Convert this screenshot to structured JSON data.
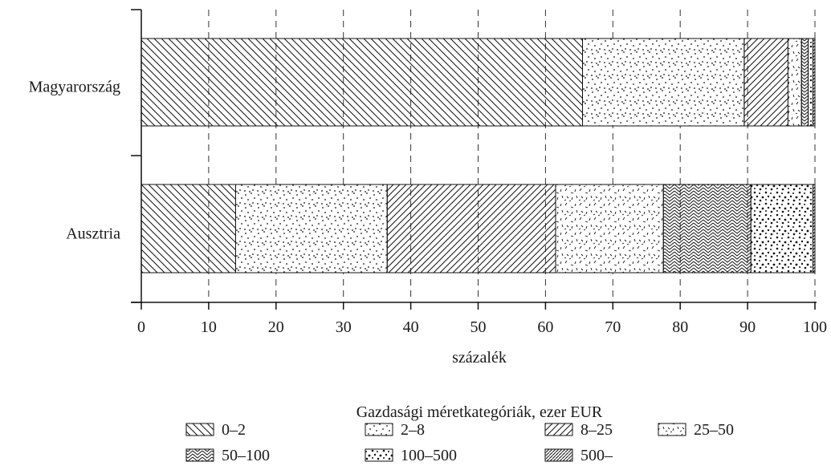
{
  "chart_data": {
    "type": "bar",
    "orientation": "horizontal",
    "stacked": true,
    "categories": [
      "Magyarország",
      "Ausztria"
    ],
    "series": [
      {
        "name": "0–2",
        "values": [
          65.5,
          14.0
        ]
      },
      {
        "name": "2–8",
        "values": [
          24.0,
          22.5
        ]
      },
      {
        "name": "8–25",
        "values": [
          6.5,
          25.0
        ]
      },
      {
        "name": "25–50",
        "values": [
          2.0,
          16.0
        ]
      },
      {
        "name": "50–100",
        "values": [
          1.0,
          13.0
        ]
      },
      {
        "name": "100–500",
        "values": [
          0.7,
          9.2
        ]
      },
      {
        "name": "500–",
        "values": [
          0.3,
          0.3
        ]
      }
    ],
    "xlabel": "százalék",
    "xlim": [
      0,
      100
    ],
    "xticks": [
      "0",
      "10",
      "20",
      "30",
      "40",
      "50",
      "60",
      "70",
      "80",
      "90",
      "100"
    ],
    "grid": "vertical dashed",
    "legend_title": "Gazdasági méretkategóriák, ezer EUR",
    "legend_position": "bottom"
  }
}
